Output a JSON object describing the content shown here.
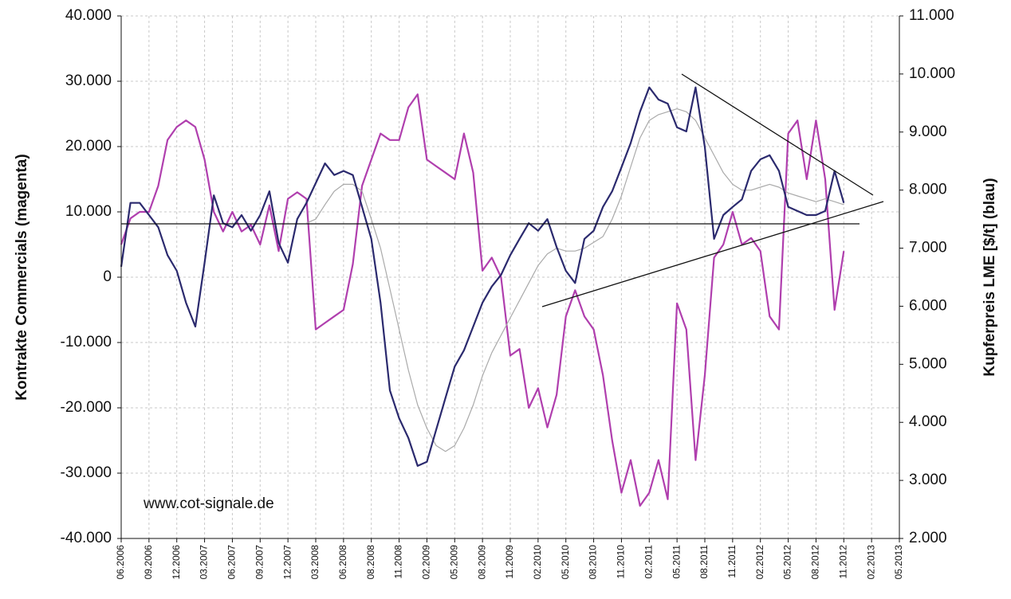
{
  "chart_data": {
    "type": "line",
    "y_label": "Kontrakte Commercials (magenta)",
    "y2_label": "Kupferpreis LME [$/t] (blau)",
    "annotation": "www.cot-signale.de",
    "categories": [
      "06.2006",
      null,
      null,
      "09.2006",
      null,
      null,
      "12.2006",
      null,
      null,
      "03.2007",
      null,
      null,
      "06.2007",
      null,
      null,
      "09.2007",
      null,
      null,
      "12.2007",
      null,
      null,
      "03.2008",
      null,
      null,
      "06.2008",
      null,
      null,
      "08.2008",
      null,
      null,
      "11.2008",
      null,
      null,
      "02.2009",
      null,
      null,
      "05.2009",
      null,
      null,
      "08.2009",
      null,
      null,
      "11.2009",
      null,
      null,
      "02.2010",
      null,
      null,
      "05.2010",
      null,
      null,
      "08.2010",
      null,
      null,
      "11.2010",
      null,
      null,
      "02.2011",
      null,
      null,
      "05.2011",
      null,
      null,
      "08.2011",
      null,
      null,
      "11.2011",
      null,
      null,
      "02.2012",
      null,
      null,
      "05.2012",
      null,
      null,
      "08.2012",
      null,
      null,
      "11.2012",
      null,
      null,
      "02.2013",
      null,
      null,
      "05.2013"
    ],
    "series": [
      {
        "color": "#b03fae",
        "values": [
          5000,
          9000,
          10000,
          10000,
          14000,
          21000,
          23000,
          24000,
          23000,
          18000,
          10000,
          7000,
          10000,
          7000,
          8000,
          5000,
          11000,
          4000,
          12000,
          13000,
          12000,
          -8000,
          -7000,
          -6000,
          -5000,
          2000,
          14000,
          18000,
          22000,
          21000,
          21000,
          26000,
          28000,
          18000,
          17000,
          16000,
          15000,
          22000,
          16000,
          1000,
          3000,
          0,
          -12000,
          -11000,
          -20000,
          -17000,
          -23000,
          -18000,
          -6000,
          -2000,
          -6000,
          -8000,
          -15000,
          -25000,
          -33000,
          -28000,
          -35000,
          -33000,
          -28000,
          -34000,
          -4000,
          -8000,
          -28000,
          -15000,
          3000,
          5000,
          10000,
          5000,
          6000,
          4000,
          -6000,
          -8000,
          22000,
          24000,
          15000,
          24000,
          15000,
          -5000,
          4000,
          null,
          null,
          null,
          null,
          null,
          null
        ]
      },
      {
        "color": "#aaaaaa",
        "axis": "y2",
        "values": [
          null,
          null,
          null,
          null,
          null,
          null,
          null,
          null,
          null,
          null,
          null,
          null,
          null,
          null,
          null,
          null,
          null,
          null,
          null,
          null,
          7430,
          7500,
          7750,
          7980,
          8100,
          8100,
          7980,
          7500,
          7000,
          6300,
          5600,
          4900,
          4300,
          3900,
          3600,
          3500,
          3600,
          3900,
          4300,
          4800,
          5200,
          5500,
          5800,
          6100,
          6400,
          6700,
          6900,
          7000,
          6950,
          6950,
          7000,
          7100,
          7200,
          7500,
          7900,
          8400,
          8900,
          9200,
          9300,
          9350,
          9400,
          9350,
          9200,
          8900,
          8600,
          8300,
          8100,
          8000,
          8000,
          8050,
          8100,
          8050,
          7950,
          7900,
          7850,
          7800,
          7850,
          7800,
          7750,
          null,
          null,
          null,
          null,
          null,
          null
        ]
      },
      {
        "color": "#2b2a6e",
        "axis": "y2",
        "values": [
          6680,
          7780,
          7780,
          7570,
          7360,
          6880,
          6610,
          6060,
          5650,
          6750,
          7910,
          7430,
          7360,
          7570,
          7300,
          7570,
          7980,
          7090,
          6750,
          7500,
          7780,
          8120,
          8460,
          8260,
          8330,
          8260,
          7710,
          7160,
          6060,
          4550,
          4070,
          3730,
          3250,
          3320,
          3870,
          4420,
          4960,
          5240,
          5650,
          6060,
          6340,
          6540,
          6880,
          7160,
          7430,
          7300,
          7500,
          7020,
          6610,
          6400,
          7160,
          7300,
          7710,
          7980,
          8390,
          8810,
          9350,
          9770,
          9560,
          9490,
          9080,
          9010,
          9770,
          8740,
          7160,
          7570,
          7710,
          7840,
          8330,
          8530,
          8600,
          8330,
          7710,
          7640,
          7570,
          7570,
          7640,
          8330,
          7780,
          null,
          null,
          null,
          null,
          null,
          null
        ]
      }
    ],
    "ylim": [
      -40000,
      40000
    ],
    "yticks": [
      {
        "value": 40000,
        "label": "40.000"
      },
      {
        "value": 30000,
        "label": "30.000"
      },
      {
        "value": 20000,
        "label": "20.000"
      },
      {
        "value": 10000,
        "label": "10.000"
      },
      0,
      {
        "value": -10000,
        "label": "-10.000"
      },
      {
        "value": -20000,
        "label": "-20.000"
      },
      {
        "value": -30000,
        "label": "-30.000"
      },
      {
        "value": -40000,
        "label": "-40.000"
      }
    ],
    "y2lim": [
      2000,
      11000
    ],
    "y2ticks": [
      {
        "value": 11000,
        "label": "11.000"
      },
      {
        "value": 10000,
        "label": "10.000"
      },
      {
        "value": 9000,
        "label": "9.000"
      },
      {
        "value": 8000,
        "label": "8.000"
      },
      {
        "value": 7000,
        "label": "7.000"
      },
      {
        "value": 6000,
        "label": "6.000"
      },
      {
        "value": 5000,
        "label": "5.000"
      },
      {
        "value": 4000,
        "label": "4.000"
      },
      {
        "value": 3000,
        "label": "3.000"
      },
      {
        "value": 2000,
        "label": "2.000"
      }
    ],
    "grid": true
  }
}
